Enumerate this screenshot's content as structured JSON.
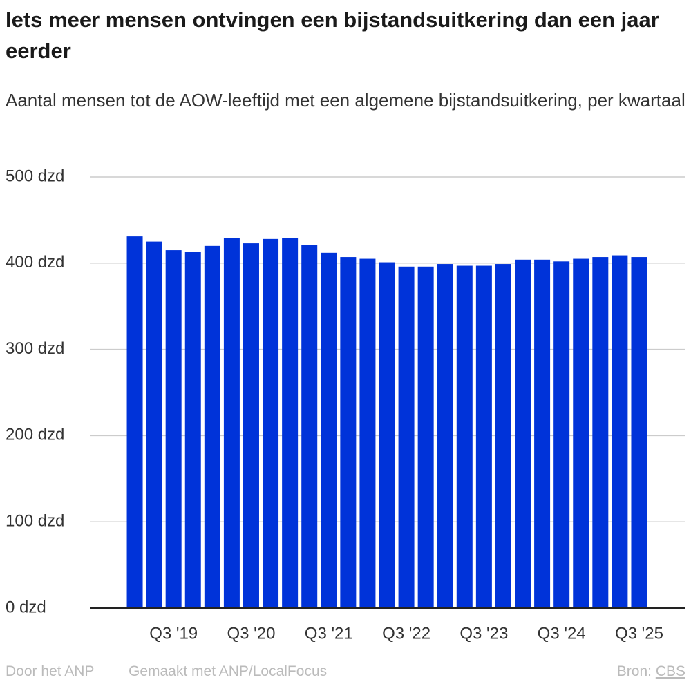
{
  "chart_data": {
    "type": "bar",
    "title": "Iets meer mensen ontvingen een bijstandsuitkering dan een jaar eerder",
    "subtitle": "Aantal mensen tot de AOW-leeftijd met een algemene bijstandsuitkering, per kwartaal",
    "categories": [
      null,
      null,
      "Q3 '19",
      null,
      null,
      null,
      "Q3 '20",
      null,
      null,
      null,
      "Q3 '21",
      null,
      null,
      null,
      "Q3 '22",
      null,
      null,
      null,
      "Q3 '23",
      null,
      null,
      null,
      "Q3 '24",
      null,
      null,
      null,
      "Q3 '25"
    ],
    "values": [
      431,
      425,
      415,
      413,
      420,
      429,
      423,
      428,
      429,
      421,
      412,
      407,
      405,
      401,
      396,
      396,
      399,
      397,
      397,
      399,
      404,
      404,
      402,
      405,
      407,
      409,
      407
    ],
    "color": "#0033d9",
    "ylim": [
      0,
      500
    ],
    "yticks": [
      {
        "value": 0,
        "label": "0 dzd"
      },
      {
        "value": 100,
        "label": "100 dzd"
      },
      {
        "value": 200,
        "label": "200 dzd"
      },
      {
        "value": 300,
        "label": "300 dzd"
      },
      {
        "value": 400,
        "label": "400 dzd"
      },
      {
        "value": 500,
        "label": "500 dzd"
      }
    ],
    "grid": true
  },
  "footer": {
    "author": "Door het ANP",
    "made_with": "Gemaakt met ANP/LocalFocus",
    "source_label": "Bron:",
    "source": "CBS"
  }
}
